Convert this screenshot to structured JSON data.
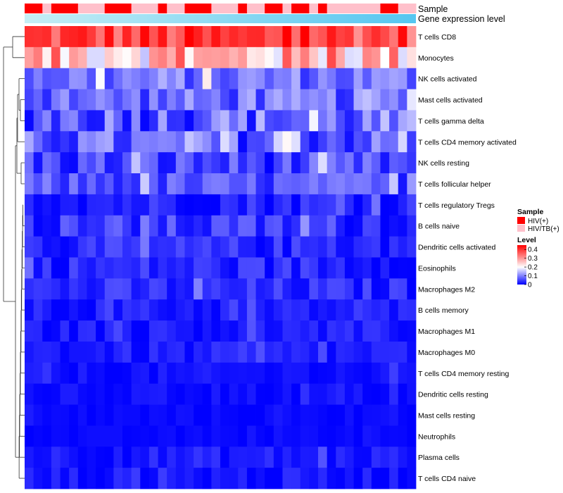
{
  "chart_data": {
    "type": "heatmap",
    "title": "",
    "annotation_tracks": [
      {
        "label": "Sample",
        "categories": [
          "HIV(+)",
          "HIV/TB(+)"
        ],
        "colors": [
          "#ff0000",
          "#ffc0cb"
        ]
      },
      {
        "label": "Gene expression level",
        "gradient": [
          "#c6eef5",
          "#55c6f0"
        ]
      }
    ],
    "sample_groups": [
      1,
      1,
      0,
      1,
      1,
      1,
      0,
      0,
      0,
      1,
      1,
      1,
      0,
      0,
      0,
      1,
      0,
      0,
      1,
      1,
      1,
      0,
      0,
      0,
      1,
      0,
      0,
      1,
      1,
      0,
      1,
      1,
      0,
      1,
      0,
      0,
      0,
      0,
      0,
      0,
      1,
      1,
      0,
      0
    ],
    "rows": [
      "T cells CD8",
      "Monocytes",
      "NK cells activated",
      "Mast cells activated",
      "T cells gamma delta",
      "T cells CD4 memory activated",
      "NK cells resting",
      "T cells follicular helper",
      "T cells regulatory  Tregs",
      "B cells naive",
      "Dendritic cells activated",
      "Eosinophils",
      "Macrophages M2",
      "B cells memory",
      "Macrophages M1",
      "Macrophages M0",
      "T cells CD4 memory resting",
      "Dendritic cells resting",
      "Mast cells resting",
      "Neutrophils",
      "Plasma cells",
      "T cells CD4 naive"
    ],
    "n_columns": 44,
    "row_means": [
      0.38,
      0.26,
      0.09,
      0.08,
      0.08,
      0.07,
      0.05,
      0.06,
      0.03,
      0.04,
      0.03,
      0.03,
      0.03,
      0.02,
      0.02,
      0.02,
      0.01,
      0.01,
      0.005,
      0.005,
      0.02,
      0.015
    ],
    "row_spreads": [
      0.07,
      0.1,
      0.05,
      0.05,
      0.07,
      0.06,
      0.05,
      0.04,
      0.03,
      0.04,
      0.03,
      0.03,
      0.03,
      0.02,
      0.02,
      0.02,
      0.015,
      0.012,
      0.008,
      0.006,
      0.02,
      0.02
    ],
    "value_range": [
      0,
      0.45
    ],
    "color_scale": [
      "#0000ff",
      "#ffffff",
      "#ff0000"
    ],
    "legend": {
      "sample_title": "Sample",
      "sample_entries": [
        "HIV(+)",
        "HIV/TB(+)"
      ],
      "level_title": "Level",
      "level_ticks": [
        "0.4",
        "0.3",
        "0.2",
        "0.1",
        "0"
      ],
      "level_tick_values": [
        0.4,
        0.3,
        0.2,
        0.1,
        0
      ]
    },
    "colors": {
      "hiv": "#ff0000",
      "hivtb": "#ffc0cb",
      "low": "#0000ff",
      "mid": "#ffffff",
      "high": "#ff0000",
      "dendrogram": "#333333"
    }
  }
}
